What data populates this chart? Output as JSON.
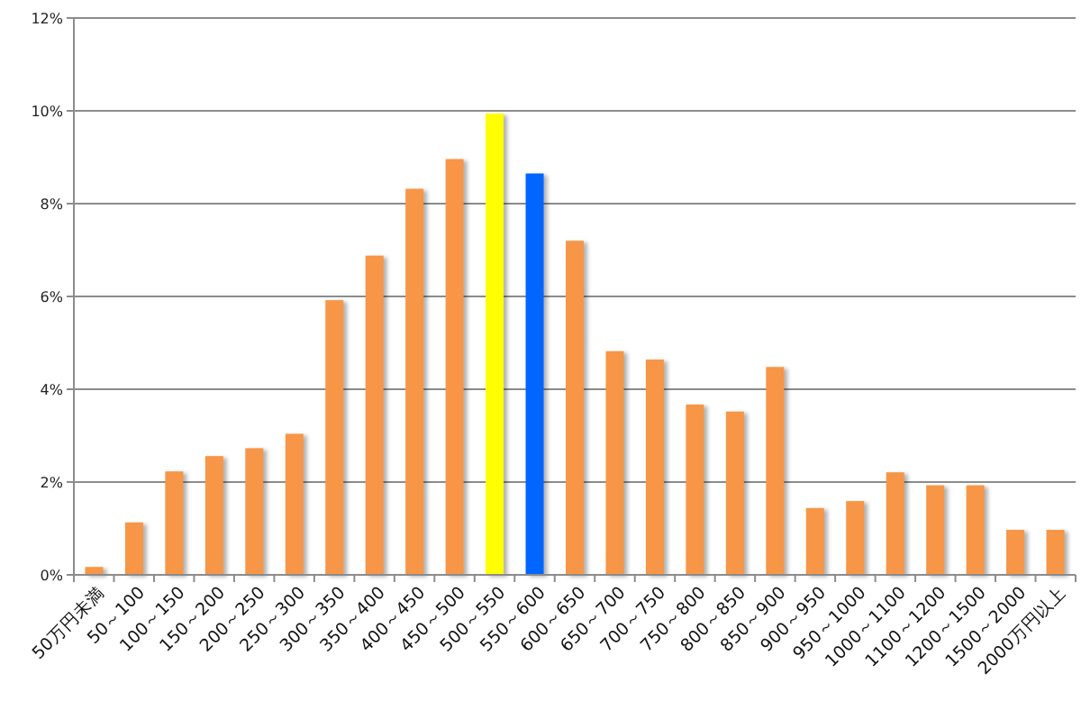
{
  "chart_data": {
    "type": "bar",
    "categories": [
      "50万円未満",
      "50～100",
      "100～150",
      "150～200",
      "200～250",
      "250～300",
      "300～350",
      "350～400",
      "400～450",
      "450～500",
      "500～550",
      "550～600",
      "600～650",
      "650～700",
      "700～750",
      "750～800",
      "800～850",
      "850～900",
      "900～950",
      "950～1000",
      "1000～1100",
      "1100～1200",
      "1200～1500",
      "1500～2000",
      "2000万円以上"
    ],
    "values": [
      0.17,
      1.13,
      2.23,
      2.56,
      2.73,
      3.04,
      5.92,
      6.88,
      8.32,
      8.96,
      9.94,
      8.65,
      7.2,
      4.82,
      4.64,
      3.67,
      3.52,
      4.48,
      1.44,
      1.59,
      2.21,
      1.93,
      1.93,
      0.97,
      0.97
    ],
    "colors": [
      "#f79646",
      "#f79646",
      "#f79646",
      "#f79646",
      "#f79646",
      "#f79646",
      "#f79646",
      "#f79646",
      "#f79646",
      "#f79646",
      "#ffff00",
      "#0066ff",
      "#f79646",
      "#f79646",
      "#f79646",
      "#f79646",
      "#f79646",
      "#f79646",
      "#f79646",
      "#f79646",
      "#f79646",
      "#f79646",
      "#f79646",
      "#f79646",
      "#f79646"
    ],
    "ylim": [
      0,
      12
    ],
    "yticks": [
      {
        "value": 0,
        "label": "0%"
      },
      {
        "value": 2,
        "label": "2%"
      },
      {
        "value": 4,
        "label": "4%"
      },
      {
        "value": 6,
        "label": "6%"
      },
      {
        "value": 8,
        "label": "8%"
      },
      {
        "value": 10,
        "label": "10%"
      },
      {
        "value": 12,
        "label": "12%"
      }
    ],
    "grid": "y"
  }
}
